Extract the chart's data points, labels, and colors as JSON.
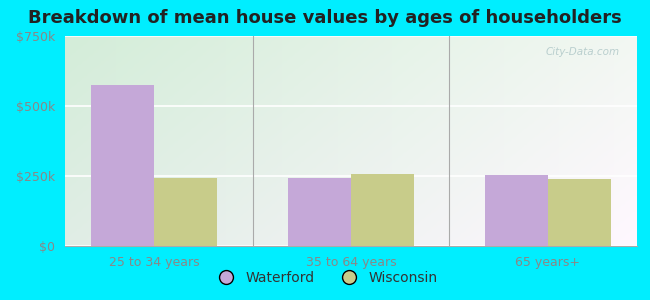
{
  "title": "Breakdown of mean house values by ages of householders",
  "categories": [
    "25 to 34 years",
    "35 to 64 years",
    "65 years+"
  ],
  "waterford_values": [
    575000,
    242000,
    255000
  ],
  "wisconsin_values": [
    242000,
    258000,
    240000
  ],
  "bar_color_waterford": "#c5a8d8",
  "bar_color_wisconsin": "#c8cc8a",
  "ylim": [
    0,
    750000
  ],
  "yticks": [
    0,
    250000,
    500000,
    750000
  ],
  "ytick_labels": [
    "$0",
    "$250k",
    "$500k",
    "$750k"
  ],
  "legend_labels": [
    "Waterford",
    "Wisconsin"
  ],
  "title_fontsize": 13,
  "tick_fontsize": 9,
  "legend_fontsize": 10,
  "bar_width": 0.32,
  "outer_bg": "#00eeff",
  "watermark": "City-Data.com"
}
